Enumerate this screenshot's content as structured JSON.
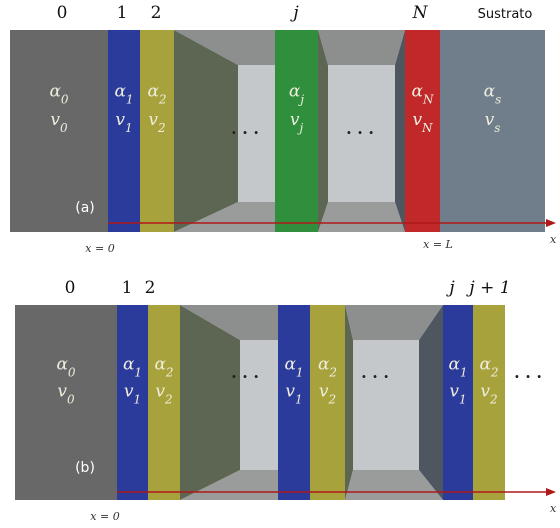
{
  "panel_a": {
    "label": "(a)",
    "indices": [
      "0",
      "1",
      "2",
      "j",
      "N",
      "Sustrato"
    ],
    "layers": [
      {
        "alpha": {
          "symbol": "α",
          "sub": "0"
        },
        "v": {
          "symbol": "v",
          "sub": "0"
        }
      },
      {
        "alpha": {
          "symbol": "α",
          "sub": "1"
        },
        "v": {
          "symbol": "v",
          "sub": "1"
        }
      },
      {
        "alpha": {
          "symbol": "α",
          "sub": "2"
        },
        "v": {
          "symbol": "v",
          "sub": "2"
        }
      },
      {
        "alpha": {
          "symbol": "α",
          "sub": "j"
        },
        "v": {
          "symbol": "v",
          "sub": "j"
        }
      },
      {
        "alpha": {
          "symbol": "α",
          "sub": "N"
        },
        "v": {
          "symbol": "v",
          "sub": "N"
        }
      },
      {
        "alpha": {
          "symbol": "α",
          "sub": "s"
        },
        "v": {
          "symbol": "v",
          "sub": "s"
        }
      }
    ],
    "ellipses": [
      "· · ·",
      "· · ·"
    ],
    "positions": [
      "x = 0",
      "x = L"
    ],
    "axis": "x"
  },
  "panel_b": {
    "label": "(b)",
    "indices": [
      "0",
      "1",
      "2",
      "j",
      "j + 1"
    ],
    "layers": [
      {
        "alpha": {
          "symbol": "α",
          "sub": "0"
        },
        "v": {
          "symbol": "v",
          "sub": "0"
        }
      },
      {
        "alpha": {
          "symbol": "α",
          "sub": "1"
        },
        "v": {
          "symbol": "v",
          "sub": "1"
        }
      },
      {
        "alpha": {
          "symbol": "α",
          "sub": "2"
        },
        "v": {
          "symbol": "v",
          "sub": "2"
        }
      },
      {
        "alpha": {
          "symbol": "α",
          "sub": "1"
        },
        "v": {
          "symbol": "v",
          "sub": "1"
        }
      },
      {
        "alpha": {
          "symbol": "α",
          "sub": "2"
        },
        "v": {
          "symbol": "v",
          "sub": "2"
        }
      },
      {
        "alpha": {
          "symbol": "α",
          "sub": "1"
        },
        "v": {
          "symbol": "v",
          "sub": "1"
        }
      },
      {
        "alpha": {
          "symbol": "α",
          "sub": "2"
        },
        "v": {
          "symbol": "v",
          "sub": "2"
        }
      }
    ],
    "ellipses": [
      "· · ·",
      "· · ·",
      "· · ·"
    ],
    "positions": [
      "x = 0"
    ],
    "axis": "x"
  }
}
